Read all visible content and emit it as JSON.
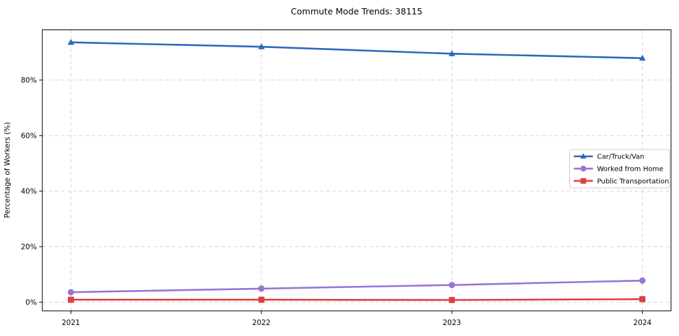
{
  "chart_data": {
    "type": "line",
    "title": "Commute Mode Trends: 38115",
    "xlabel": "",
    "ylabel": "Percentage of Workers (%)",
    "x": [
      2021,
      2022,
      2023,
      2024
    ],
    "x_tick_labels": [
      "2021",
      "2022",
      "2023",
      "2024"
    ],
    "y_ticks": [
      0,
      20,
      40,
      60,
      80
    ],
    "y_tick_labels": [
      "0%",
      "20%",
      "40%",
      "60%",
      "80%"
    ],
    "xlim": [
      2020.85,
      2024.15
    ],
    "ylim": [
      -3.1,
      98.1
    ],
    "grid": true,
    "grid_style": "dashed",
    "legend_position": "center-right",
    "series": [
      {
        "name": "Car/Truck/Van",
        "marker": "triangle",
        "color": "#2b69bd",
        "values": [
          93.6,
          92.0,
          89.5,
          87.9
        ]
      },
      {
        "name": "Worked from Home",
        "marker": "circle",
        "color": "#9873d9",
        "values": [
          3.6,
          4.9,
          6.2,
          7.8
        ]
      },
      {
        "name": "Public Transportation",
        "marker": "square",
        "color": "#df3e42",
        "values": [
          0.9,
          0.9,
          0.8,
          1.1
        ]
      }
    ],
    "colors": {
      "background": "#ffffff",
      "grid": "#d3d3d3",
      "spine": "#000000",
      "text": "#000000",
      "legend_border": "#cccccc",
      "legend_background": "#ffffff"
    }
  }
}
